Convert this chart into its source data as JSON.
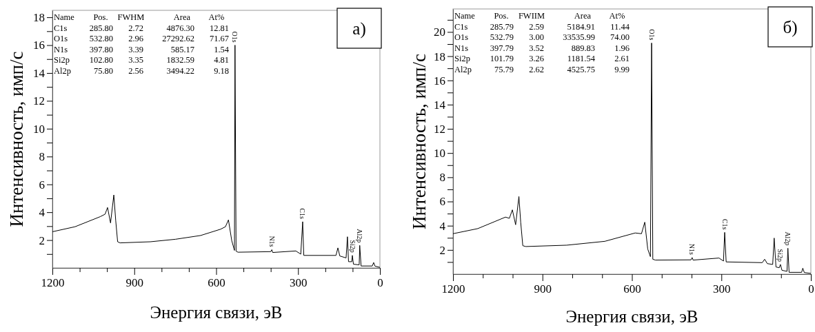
{
  "chart_data": [
    {
      "type": "line",
      "title": "а)",
      "xlabel": "Энергия связи, эВ",
      "ylabel": "Интенсивность, имп/с",
      "xlim": [
        1200,
        0
      ],
      "xticks": [
        1200,
        {
          "value": 1100,
          "label": null
        },
        {
          "value": 1000,
          "label": null
        },
        900,
        {
          "value": 800,
          "label": null
        },
        {
          "value": 700,
          "label": null
        },
        600,
        {
          "value": 500,
          "label": null
        },
        {
          "value": 400,
          "label": null
        },
        300,
        {
          "value": 200,
          "label": null
        },
        {
          "value": 100,
          "label": null
        },
        0
      ],
      "ylim": [
        0,
        18.5
      ],
      "yticks": [
        {
          "value": 1,
          "label": null
        },
        2,
        {
          "value": 3,
          "label": null
        },
        4,
        {
          "value": 5,
          "label": null
        },
        6,
        {
          "value": 7,
          "label": null
        },
        8,
        {
          "value": 9,
          "label": null
        },
        10,
        {
          "value": 11,
          "label": null
        },
        12,
        {
          "value": 13,
          "label": null
        },
        14,
        {
          "value": 15,
          "label": null
        },
        16,
        {
          "value": 17,
          "label": null
        },
        18
      ],
      "series": [
        {
          "color": "#000000",
          "x": [
            1200,
            1117,
            1025,
            1007,
            998,
            987,
            975,
            968,
            961,
            952,
            841,
            749,
            657,
            584,
            566,
            555,
            543,
            533,
            531,
            527,
            520,
            400,
            396,
            393,
            308,
            290,
            283,
            279,
            161,
            154,
            147,
            124,
            119,
            115,
            103,
            101,
            97,
            76,
            74,
            69,
            28,
            23,
            18,
            0
          ],
          "values": [
            2.6,
            2.96,
            3.68,
            3.86,
            4.34,
            3.23,
            5.24,
            3.4,
            1.88,
            1.8,
            1.88,
            2.06,
            2.33,
            2.78,
            2.96,
            3.45,
            1.97,
            1.26,
            16.0,
            1.2,
            1.13,
            1.17,
            1.31,
            1.11,
            1.22,
            0.99,
            3.32,
            0.9,
            0.9,
            1.44,
            0.86,
            0.72,
            2.24,
            0.45,
            0.45,
            0.9,
            0.27,
            0.22,
            1.62,
            0.14,
            0.14,
            0.39,
            0.13,
            0.04
          ]
        }
      ],
      "annotations": [
        "Name Pos. FWHM Area At%",
        "C1s 285.80 2.72 4876.30 12.81",
        "O1s 532.80 2.96 27292.62 71.67",
        "N1s 397.80 3.39 585.17 1.54",
        "Si2p 102.80 3.35 1832.59 4.81",
        "Al2p 75.80 2.56 3494.22 9.18",
        {
          "text": "O1s",
          "x": 531,
          "y": 16.0
        },
        {
          "text": "N1s",
          "x": 396,
          "y": 1.31
        },
        {
          "text": "C1s",
          "x": 283,
          "y": 3.32
        },
        {
          "text": "Si2p",
          "x": 101,
          "y": 0.9
        },
        {
          "text": "Al2p",
          "x": 74,
          "y": 1.62
        }
      ]
    },
    {
      "type": "line",
      "title": "б)",
      "xlabel": "Энергия связи, эВ",
      "ylabel": "Интенсивность, имп/с",
      "xlim": [
        1200,
        0
      ],
      "xticks": [
        1200,
        {
          "value": 1100,
          "label": null
        },
        {
          "value": 1000,
          "label": null
        },
        900,
        {
          "value": 800,
          "label": null
        },
        {
          "value": 700,
          "label": null
        },
        600,
        {
          "value": 500,
          "label": null
        },
        {
          "value": 400,
          "label": null
        },
        300,
        {
          "value": 200,
          "label": null
        },
        {
          "value": 100,
          "label": null
        },
        0
      ],
      "ylim": [
        0,
        21.9
      ],
      "yticks": [
        {
          "value": 1,
          "label": null
        },
        2,
        {
          "value": 3,
          "label": null
        },
        4,
        {
          "value": 5,
          "label": null
        },
        6,
        {
          "value": 7,
          "label": null
        },
        8,
        {
          "value": 9,
          "label": null
        },
        10,
        {
          "value": 11,
          "label": null
        },
        12,
        {
          "value": 13,
          "label": null
        },
        14,
        {
          "value": 15,
          "label": null
        },
        16,
        {
          "value": 17,
          "label": null
        },
        18,
        {
          "value": 19,
          "label": null
        },
        20,
        {
          "value": 21,
          "label": null
        }
      ],
      "series": [
        {
          "color": "#000000",
          "x": [
            1200,
            1117,
            1024,
            1011,
            1001,
            990,
            979,
            973,
            966,
            956,
            819,
            691,
            589,
            568,
            557,
            547,
            538,
            534,
            530,
            521,
            402,
            398,
            395,
            308,
            293,
            289,
            284,
            163,
            155,
            146,
            128,
            123,
            117,
            106,
            102,
            97,
            80,
            77,
            73,
            31,
            27,
            22,
            0
          ],
          "values": [
            3.34,
            3.76,
            4.71,
            4.61,
            5.31,
            4.08,
            6.41,
            4.29,
            2.35,
            2.28,
            2.39,
            2.71,
            3.4,
            3.34,
            4.29,
            2.07,
            1.44,
            19.09,
            1.23,
            1.16,
            1.18,
            1.37,
            1.16,
            1.33,
            1.08,
            3.45,
            1.01,
            0.95,
            1.23,
            0.87,
            0.8,
            2.98,
            0.59,
            0.53,
            0.8,
            0.32,
            0.23,
            2.14,
            0.15,
            0.15,
            0.49,
            0.13,
            0.06
          ]
        }
      ],
      "annotations": [
        "Name Pos. FWIIM Area At%",
        "C1s 285.79 2.59 5184.91 11.44",
        "O1s 532.79 3.00 33535.99 74.00",
        "N1s 397.79 3.52 889.83 1.96",
        "Si2p 101.79 3.26 1181.54 2.61",
        "Al2p 75.79 2.62 4525.75 9.99",
        {
          "text": "O1s",
          "x": 534,
          "y": 19.09
        },
        {
          "text": "N1s",
          "x": 398,
          "y": 1.37
        },
        {
          "text": "C1s",
          "x": 289,
          "y": 3.45
        },
        {
          "text": "Si2p",
          "x": 102,
          "y": 0.8
        },
        {
          "text": "Al2p",
          "x": 77,
          "y": 2.14
        }
      ]
    }
  ]
}
